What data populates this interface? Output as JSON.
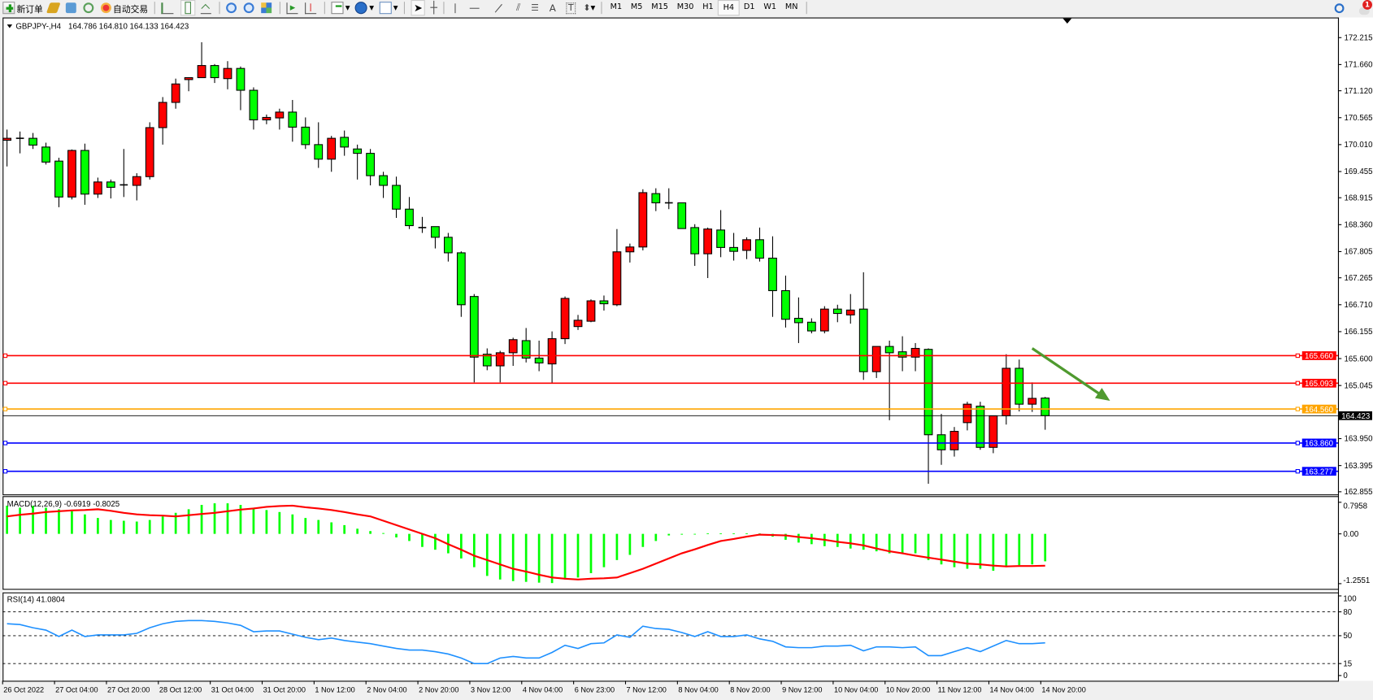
{
  "toolbar": {
    "new_order_label": "新订单",
    "auto_trading_label": "自动交易",
    "timeframes": [
      "M1",
      "M5",
      "M15",
      "M30",
      "H1",
      "H4",
      "D1",
      "W1",
      "MN"
    ],
    "active_timeframe": "H4",
    "notification_count": "1",
    "icons": [
      "new-order-icon",
      "gold-icon",
      "server-icon",
      "signal-icon",
      "auto-trading-icon",
      "bar-chart-icon",
      "candlestick-icon",
      "line-chart-icon",
      "zoom-in-icon",
      "zoom-out-icon",
      "tile-windows-icon",
      "chart-shift-icon",
      "autoscroll-icon",
      "indicators-icon",
      "periods-icon",
      "templates-icon",
      "cursor-icon",
      "crosshair-icon",
      "vertical-line-icon",
      "horizontal-line-icon",
      "trendline-icon",
      "equidistant-channel-icon",
      "fibonacci-icon",
      "text-icon",
      "text-label-icon",
      "arrows-icon",
      "search-icon",
      "notification-icon"
    ]
  },
  "chart_header": {
    "symbol": "GBPJPY-,H4",
    "ohlc": "164.786 164.810 164.133 164.423"
  },
  "colors": {
    "bear_candle": "#00ff00",
    "bull_candle": "#ff0000",
    "resistance": "#ff0000",
    "pivot": "#ffa500",
    "support": "#0000ff",
    "macd_histogram": "#00ff00",
    "macd_signal": "#ff0000",
    "rsi_line": "#1e90ff",
    "arrow": "#4f9a2f"
  },
  "chart_data": [
    {
      "type": "candlestick",
      "title": "GBPJPY-,H4",
      "ylim": [
        162.8,
        172.63
      ],
      "y_ticks": [
        172.215,
        171.66,
        171.12,
        170.565,
        170.01,
        169.455,
        168.915,
        168.36,
        167.805,
        167.265,
        166.71,
        166.155,
        165.6,
        165.045,
        163.95,
        163.395,
        162.855
      ],
      "y_tick_labels": [
        "172.215",
        "171.660",
        "171.120",
        "170.565",
        "170.010",
        "169.455",
        "168.915",
        "168.360",
        "167.805",
        "167.265",
        "166.710",
        "166.155",
        "165.600",
        "165.045",
        "163.950",
        "163.395",
        "162.855"
      ],
      "x_tick_labels": [
        "26 Oct 2022",
        "27 Oct 04:00",
        "27 Oct 20:00",
        "28 Oct 12:00",
        "31 Oct 04:00",
        "31 Oct 20:00",
        "1 Nov 12:00",
        "2 Nov 04:00",
        "2 Nov 20:00",
        "3 Nov 12:00",
        "4 Nov 04:00",
        "6 Nov 23:00",
        "7 Nov 12:00",
        "8 Nov 04:00",
        "8 Nov 20:00",
        "9 Nov 12:00",
        "10 Nov 04:00",
        "10 Nov 20:00",
        "11 Nov 12:00",
        "14 Nov 04:00",
        "14 Nov 20:00"
      ],
      "candles": [
        [
          170.1,
          170.32,
          169.56,
          170.14
        ],
        [
          170.14,
          170.28,
          169.83,
          170.14
        ],
        [
          170.14,
          170.25,
          169.92,
          170.0
        ],
        [
          169.96,
          170.05,
          169.6,
          169.65
        ],
        [
          169.67,
          169.74,
          168.72,
          168.93
        ],
        [
          168.93,
          169.91,
          168.88,
          169.89
        ],
        [
          169.89,
          170.03,
          168.77,
          168.99
        ],
        [
          168.99,
          169.33,
          168.91,
          169.24
        ],
        [
          169.24,
          169.29,
          168.9,
          169.13
        ],
        [
          169.18,
          169.92,
          168.93,
          169.18
        ],
        [
          169.17,
          169.42,
          168.86,
          169.35
        ],
        [
          169.35,
          170.47,
          169.29,
          170.36
        ],
        [
          170.36,
          170.99,
          170.01,
          170.88
        ],
        [
          170.88,
          171.37,
          170.75,
          171.26
        ],
        [
          171.35,
          171.4,
          171.11,
          171.39
        ],
        [
          171.39,
          172.12,
          171.39,
          171.64
        ],
        [
          171.64,
          171.67,
          171.28,
          171.39
        ],
        [
          171.37,
          171.73,
          171.15,
          171.58
        ],
        [
          171.58,
          171.62,
          170.72,
          171.13
        ],
        [
          171.13,
          171.19,
          170.32,
          170.52
        ],
        [
          170.52,
          170.63,
          170.43,
          170.57
        ],
        [
          170.56,
          170.75,
          170.32,
          170.68
        ],
        [
          170.68,
          170.93,
          170.07,
          170.37
        ],
        [
          170.37,
          170.57,
          169.92,
          170.01
        ],
        [
          170.01,
          170.47,
          169.53,
          169.71
        ],
        [
          169.71,
          170.19,
          169.45,
          170.14
        ],
        [
          170.16,
          170.3,
          169.78,
          169.96
        ],
        [
          169.92,
          170.01,
          169.29,
          169.83
        ],
        [
          169.83,
          169.92,
          169.17,
          169.37
        ],
        [
          169.37,
          169.45,
          168.91,
          169.17
        ],
        [
          169.17,
          169.35,
          168.5,
          168.68
        ],
        [
          168.68,
          168.93,
          168.27,
          168.34
        ],
        [
          168.3,
          168.52,
          168.19,
          168.3
        ],
        [
          168.32,
          168.32,
          167.87,
          168.1
        ],
        [
          168.1,
          168.19,
          167.6,
          167.78
        ],
        [
          167.78,
          167.81,
          166.46,
          166.71
        ],
        [
          166.88,
          166.93,
          165.11,
          165.63
        ],
        [
          165.69,
          165.81,
          165.36,
          165.45
        ],
        [
          165.45,
          165.76,
          165.11,
          165.72
        ],
        [
          165.72,
          166.03,
          165.45,
          165.99
        ],
        [
          165.97,
          166.23,
          165.52,
          165.61
        ],
        [
          165.61,
          165.97,
          165.34,
          165.51
        ],
        [
          165.49,
          166.16,
          165.09,
          166.01
        ],
        [
          166.01,
          166.88,
          165.9,
          166.84
        ],
        [
          166.26,
          166.5,
          166.19,
          166.39
        ],
        [
          166.37,
          166.82,
          166.35,
          166.79
        ],
        [
          166.79,
          166.9,
          166.59,
          166.73
        ],
        [
          166.71,
          168.27,
          166.68,
          167.8
        ],
        [
          167.8,
          167.97,
          167.58,
          167.9
        ],
        [
          167.9,
          169.09,
          167.83,
          169.02
        ],
        [
          169.0,
          169.11,
          168.64,
          168.81
        ],
        [
          168.81,
          169.11,
          168.68,
          168.81
        ],
        [
          168.81,
          168.81,
          168.28,
          168.28
        ],
        [
          168.3,
          168.37,
          167.51,
          167.76
        ],
        [
          167.76,
          168.3,
          167.26,
          168.27
        ],
        [
          168.25,
          168.66,
          167.69,
          167.89
        ],
        [
          167.89,
          168.19,
          167.62,
          167.81
        ],
        [
          167.83,
          168.1,
          167.65,
          168.05
        ],
        [
          168.05,
          168.3,
          167.6,
          167.67
        ],
        [
          167.67,
          168.12,
          166.46,
          167.0
        ],
        [
          167.0,
          167.31,
          166.24,
          166.41
        ],
        [
          166.43,
          166.86,
          165.92,
          166.34
        ],
        [
          166.35,
          166.43,
          166.12,
          166.17
        ],
        [
          166.17,
          166.68,
          166.12,
          166.62
        ],
        [
          166.62,
          166.71,
          166.35,
          166.53
        ],
        [
          166.5,
          166.93,
          166.32,
          166.6
        ],
        [
          166.62,
          167.38,
          165.16,
          165.33
        ],
        [
          165.33,
          165.85,
          165.2,
          165.85
        ],
        [
          165.85,
          165.97,
          164.33,
          165.72
        ],
        [
          165.74,
          166.06,
          165.34,
          165.63
        ],
        [
          165.63,
          165.92,
          165.34,
          165.81
        ],
        [
          165.79,
          165.81,
          163.02,
          164.03
        ],
        [
          164.03,
          164.46,
          163.41,
          163.72
        ],
        [
          163.72,
          164.19,
          163.58,
          164.1
        ],
        [
          164.28,
          164.71,
          164.12,
          164.66
        ],
        [
          164.62,
          164.71,
          163.72,
          163.77
        ],
        [
          163.77,
          164.42,
          163.65,
          164.42
        ],
        [
          164.42,
          165.69,
          164.24,
          165.4
        ],
        [
          165.4,
          165.58,
          164.51,
          164.66
        ],
        [
          164.66,
          165.11,
          164.5,
          164.78
        ],
        [
          164.786,
          164.81,
          164.133,
          164.423
        ]
      ],
      "candle_fields": [
        "open",
        "high",
        "low",
        "close"
      ],
      "levels": [
        {
          "value": 165.66,
          "label": "165.660",
          "color": "#ff0000"
        },
        {
          "value": 165.093,
          "label": "165.093",
          "color": "#ff0000"
        },
        {
          "value": 164.56,
          "label": "164.560",
          "color": "#ffa500"
        },
        {
          "value": 163.86,
          "label": "163.860",
          "color": "#0000ff"
        },
        {
          "value": 163.277,
          "label": "163.277",
          "color": "#0000ff"
        }
      ],
      "bid": {
        "value": 164.423,
        "label": "164.423"
      },
      "annotation_arrow": {
        "from": {
          "candle": 79,
          "price": 165.81
        },
        "to": {
          "candle": 85,
          "price": 164.73
        },
        "direction": "down"
      }
    },
    {
      "type": "bar+line",
      "label": "MACD(12,26,9) -0.6919 -0.8025",
      "ylim": [
        -1.2551,
        0.7958
      ],
      "y_tick_labels": [
        "0.7958",
        "0.00",
        "-1.2551"
      ],
      "y_ticks": [
        0.7958,
        0.0,
        -1.2551
      ],
      "series": [
        {
          "type": "bar",
          "values": [
            0.71,
            0.66,
            0.71,
            0.66,
            0.62,
            0.57,
            0.49,
            0.4,
            0.35,
            0.33,
            0.31,
            0.35,
            0.44,
            0.53,
            0.62,
            0.73,
            0.77,
            0.77,
            0.73,
            0.66,
            0.6,
            0.55,
            0.49,
            0.4,
            0.35,
            0.29,
            0.22,
            0.13,
            0.07,
            0.02,
            -0.09,
            -0.18,
            -0.33,
            -0.4,
            -0.49,
            -0.62,
            -0.84,
            -1.06,
            -1.15,
            -1.19,
            -1.21,
            -1.23,
            -1.24,
            -1.15,
            -1.1,
            -0.99,
            -0.84,
            -0.66,
            -0.53,
            -0.33,
            -0.18,
            -0.04,
            -0.02,
            -0.01,
            0.01,
            0.01,
            0.01,
            0.01,
            0.01,
            -0.07,
            -0.15,
            -0.22,
            -0.26,
            -0.31,
            -0.33,
            -0.37,
            -0.4,
            -0.44,
            -0.49,
            -0.49,
            -0.49,
            -0.66,
            -0.77,
            -0.84,
            -0.88,
            -0.88,
            -0.93,
            -0.84,
            -0.79,
            -0.77,
            -0.6919
          ]
        },
        {
          "type": "line",
          "values": [
            0.44,
            0.48,
            0.51,
            0.55,
            0.57,
            0.59,
            0.6,
            0.62,
            0.58,
            0.53,
            0.49,
            0.47,
            0.46,
            0.44,
            0.47,
            0.5,
            0.53,
            0.57,
            0.61,
            0.64,
            0.68,
            0.7,
            0.71,
            0.67,
            0.64,
            0.6,
            0.55,
            0.49,
            0.44,
            0.33,
            0.22,
            0.11,
            0.0,
            -0.11,
            -0.26,
            -0.4,
            -0.55,
            -0.66,
            -0.77,
            -0.88,
            -0.95,
            -1.03,
            -1.1,
            -1.13,
            -1.15,
            -1.13,
            -1.12,
            -1.1,
            -0.99,
            -0.88,
            -0.75,
            -0.62,
            -0.49,
            -0.39,
            -0.28,
            -0.18,
            -0.13,
            -0.07,
            -0.02,
            -0.03,
            -0.04,
            -0.08,
            -0.11,
            -0.15,
            -0.2,
            -0.24,
            -0.29,
            -0.37,
            -0.44,
            -0.49,
            -0.55,
            -0.6,
            -0.65,
            -0.7,
            -0.75,
            -0.77,
            -0.8,
            -0.82,
            -0.81,
            -0.81,
            -0.8025
          ]
        }
      ]
    },
    {
      "type": "line",
      "label": "RSI(14) 41.0804",
      "ylim": [
        0,
        100
      ],
      "y_ticks": [
        100,
        80,
        50,
        15,
        0
      ],
      "y_tick_labels": [
        "100",
        "80",
        "50",
        "15",
        "0"
      ],
      "levels": [
        80,
        50,
        15
      ],
      "values": [
        65,
        64,
        60,
        57,
        49,
        57,
        49,
        51,
        51,
        51,
        53,
        60,
        65,
        68,
        69,
        69,
        68,
        66,
        63,
        55,
        56,
        56,
        52,
        48,
        45,
        47,
        44,
        42,
        40,
        37,
        34,
        32,
        32,
        30,
        27,
        22,
        15,
        15,
        22,
        24,
        22,
        22,
        29,
        38,
        34,
        40,
        41,
        51,
        48,
        62,
        59,
        58,
        54,
        49,
        55,
        49,
        49,
        51,
        46,
        43,
        36,
        35,
        35,
        37,
        37,
        38,
        31,
        36,
        36,
        35,
        36,
        25,
        25,
        30,
        35,
        30,
        37,
        44,
        40,
        40,
        41.08
      ]
    }
  ]
}
